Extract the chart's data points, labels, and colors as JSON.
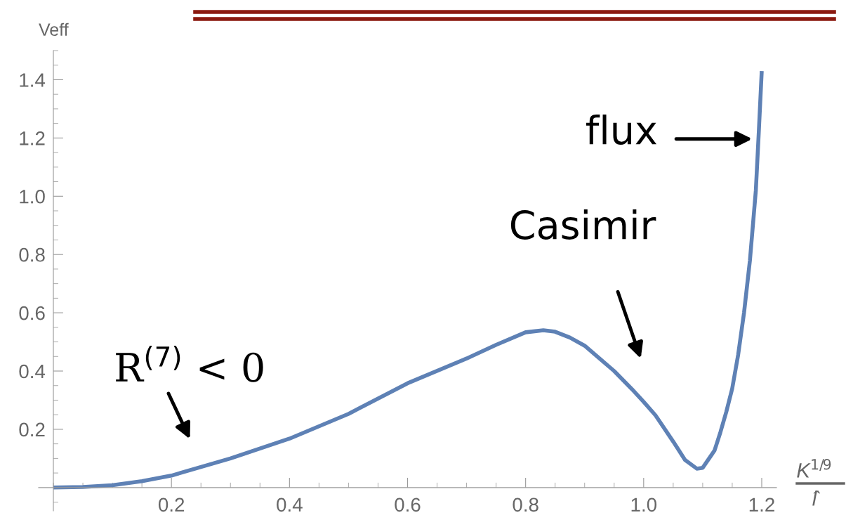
{
  "chart_data": {
    "type": "line",
    "ylabel": "Veff",
    "xlabel": "K$^{1/9}$\nl̂",
    "x": [
      0,
      0.05,
      0.1,
      0.15,
      0.2,
      0.3,
      0.4,
      0.5,
      0.6,
      0.7,
      0.75,
      0.8,
      0.83,
      0.85,
      0.875,
      0.9,
      0.95,
      0.98,
      1.0,
      1.02,
      1.05,
      1.07,
      1.09,
      1.1,
      1.12,
      1.13,
      1.14,
      1.15,
      1.16,
      1.17,
      1.18,
      1.19,
      1.195,
      1.2
    ],
    "series": [
      {
        "color": "#5e81b5",
        "values": [
          0,
          0.002,
          0.008,
          0.022,
          0.041,
          0.1,
          0.168,
          0.253,
          0.358,
          0.443,
          0.49,
          0.533,
          0.54,
          0.535,
          0.515,
          0.487,
          0.4,
          0.338,
          0.294,
          0.248,
          0.158,
          0.095,
          0.065,
          0.068,
          0.127,
          0.19,
          0.26,
          0.34,
          0.455,
          0.6,
          0.78,
          1.02,
          1.22,
          1.43
        ]
      }
    ],
    "xlim": [
      -0.025,
      1.225
    ],
    "ylim": [
      -0.08,
      1.5
    ],
    "xticks": [
      0.2,
      0.4,
      0.6,
      0.8,
      {
        "value": 1.0,
        "label": "1.0"
      },
      1.2
    ],
    "yticks": [
      0.2,
      0.4,
      0.6,
      0.8,
      {
        "value": 1.0,
        "label": "1.0"
      },
      1.2,
      1.4
    ],
    "annotations": [
      "R$^{(7)}$ < 0",
      "Casimir",
      "flux"
    ],
    "grid": false,
    "marker": "none",
    "line_style": "solid"
  }
}
